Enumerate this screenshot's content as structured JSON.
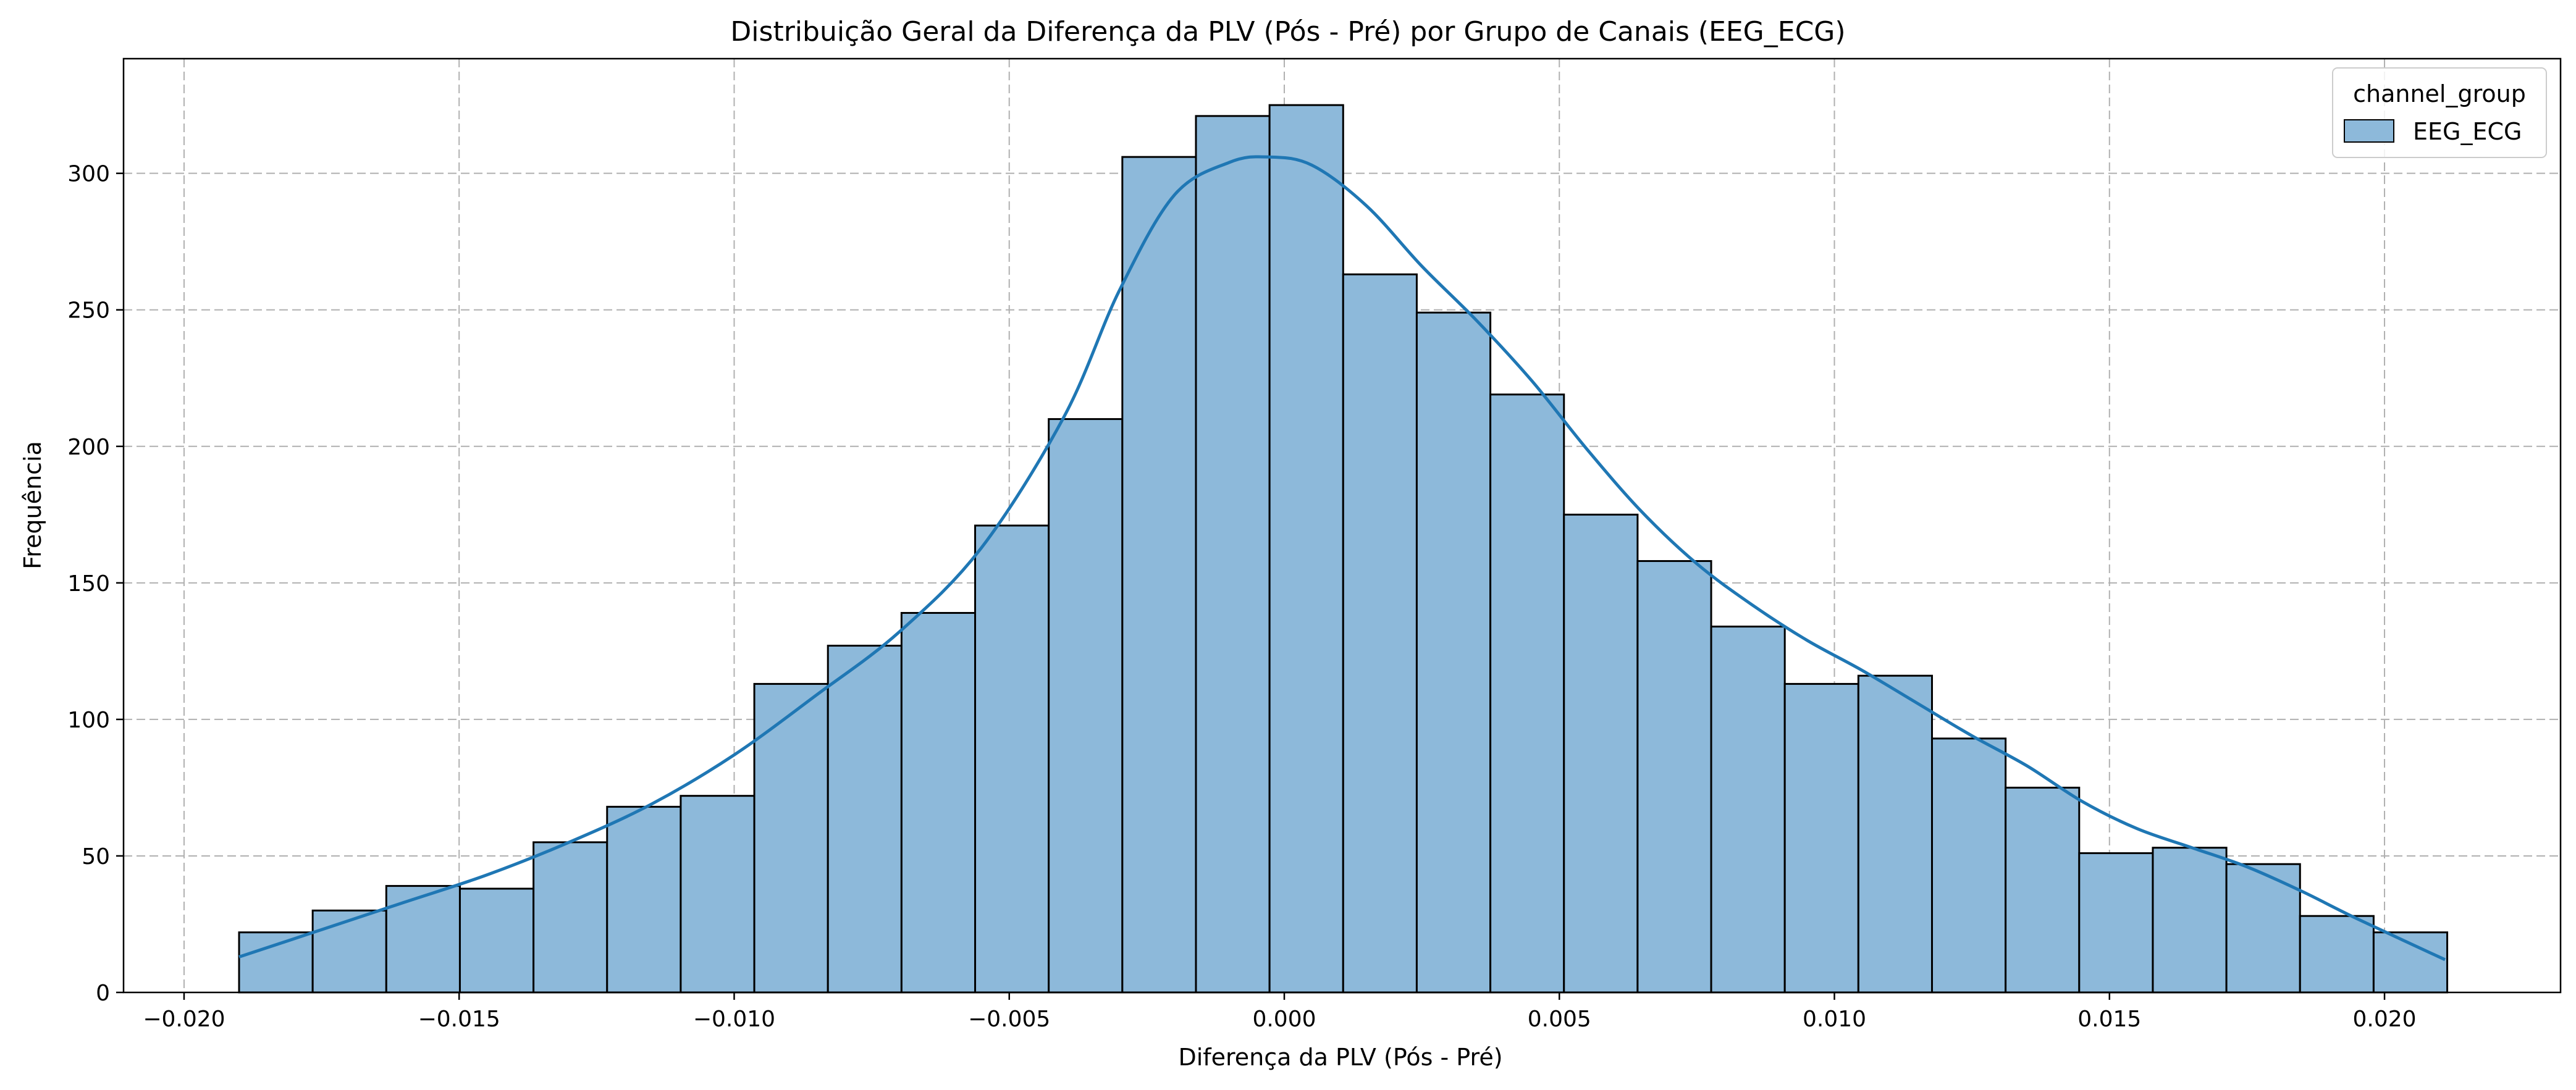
{
  "chart_data": {
    "type": "bar",
    "title": "Distribuição Geral da Diferença da PLV (Pós - Pré) por Grupo de Canais (EEG_ECG)",
    "xlabel": "Diferença da PLV (Pós - Pré)",
    "ylabel": "Frequência",
    "xlim": [
      -0.0211,
      0.0232
    ],
    "ylim": [
      0,
      342
    ],
    "grid": true,
    "legend_position": "top-right",
    "legend_title": "channel_group",
    "xticks": [
      -0.02,
      -0.015,
      -0.01,
      -0.005,
      0.0,
      0.005,
      0.01,
      0.015,
      0.02
    ],
    "xtick_labels": [
      "−0.020",
      "−0.015",
      "−0.010",
      "−0.005",
      "0.000",
      "0.005",
      "0.010",
      "0.015",
      "0.020"
    ],
    "yticks": [
      0,
      50,
      100,
      150,
      200,
      250,
      300
    ],
    "ytick_labels": [
      "0",
      "50",
      "100",
      "150",
      "200",
      "250",
      "300"
    ],
    "bin_start": -0.019,
    "bin_width": 0.001338,
    "series": [
      {
        "name": "EEG_ECG",
        "color": "#8db9da",
        "edge_color": "#000000",
        "line_color": "#1f77b4",
        "values": [
          22,
          30,
          39,
          38,
          55,
          68,
          72,
          113,
          127,
          139,
          171,
          210,
          306,
          321,
          325,
          263,
          249,
          219,
          175,
          158,
          134,
          113,
          116,
          93,
          75,
          51,
          53,
          47,
          28,
          22
        ]
      }
    ],
    "kde": {
      "x": [
        -0.019,
        -0.0175,
        -0.016,
        -0.0145,
        -0.013,
        -0.0115,
        -0.01,
        -0.0085,
        -0.007,
        -0.0055,
        -0.004,
        -0.003,
        -0.002,
        -0.001,
        -0.0003,
        0.0005,
        0.0015,
        0.0025,
        0.0035,
        0.0045,
        0.0055,
        0.0065,
        0.0075,
        0.0085,
        0.0095,
        0.0105,
        0.0115,
        0.0125,
        0.0135,
        0.0145,
        0.0155,
        0.0165,
        0.0175,
        0.0185,
        0.0195,
        0.0211
      ],
      "y": [
        13,
        23,
        33,
        43,
        55,
        69,
        87,
        109,
        132,
        163,
        211,
        257,
        292,
        304,
        306,
        303,
        288,
        266,
        246,
        224,
        199,
        176,
        157,
        142,
        129,
        118,
        106,
        94,
        83,
        70,
        60,
        53,
        46,
        37,
        27,
        12
      ]
    }
  }
}
